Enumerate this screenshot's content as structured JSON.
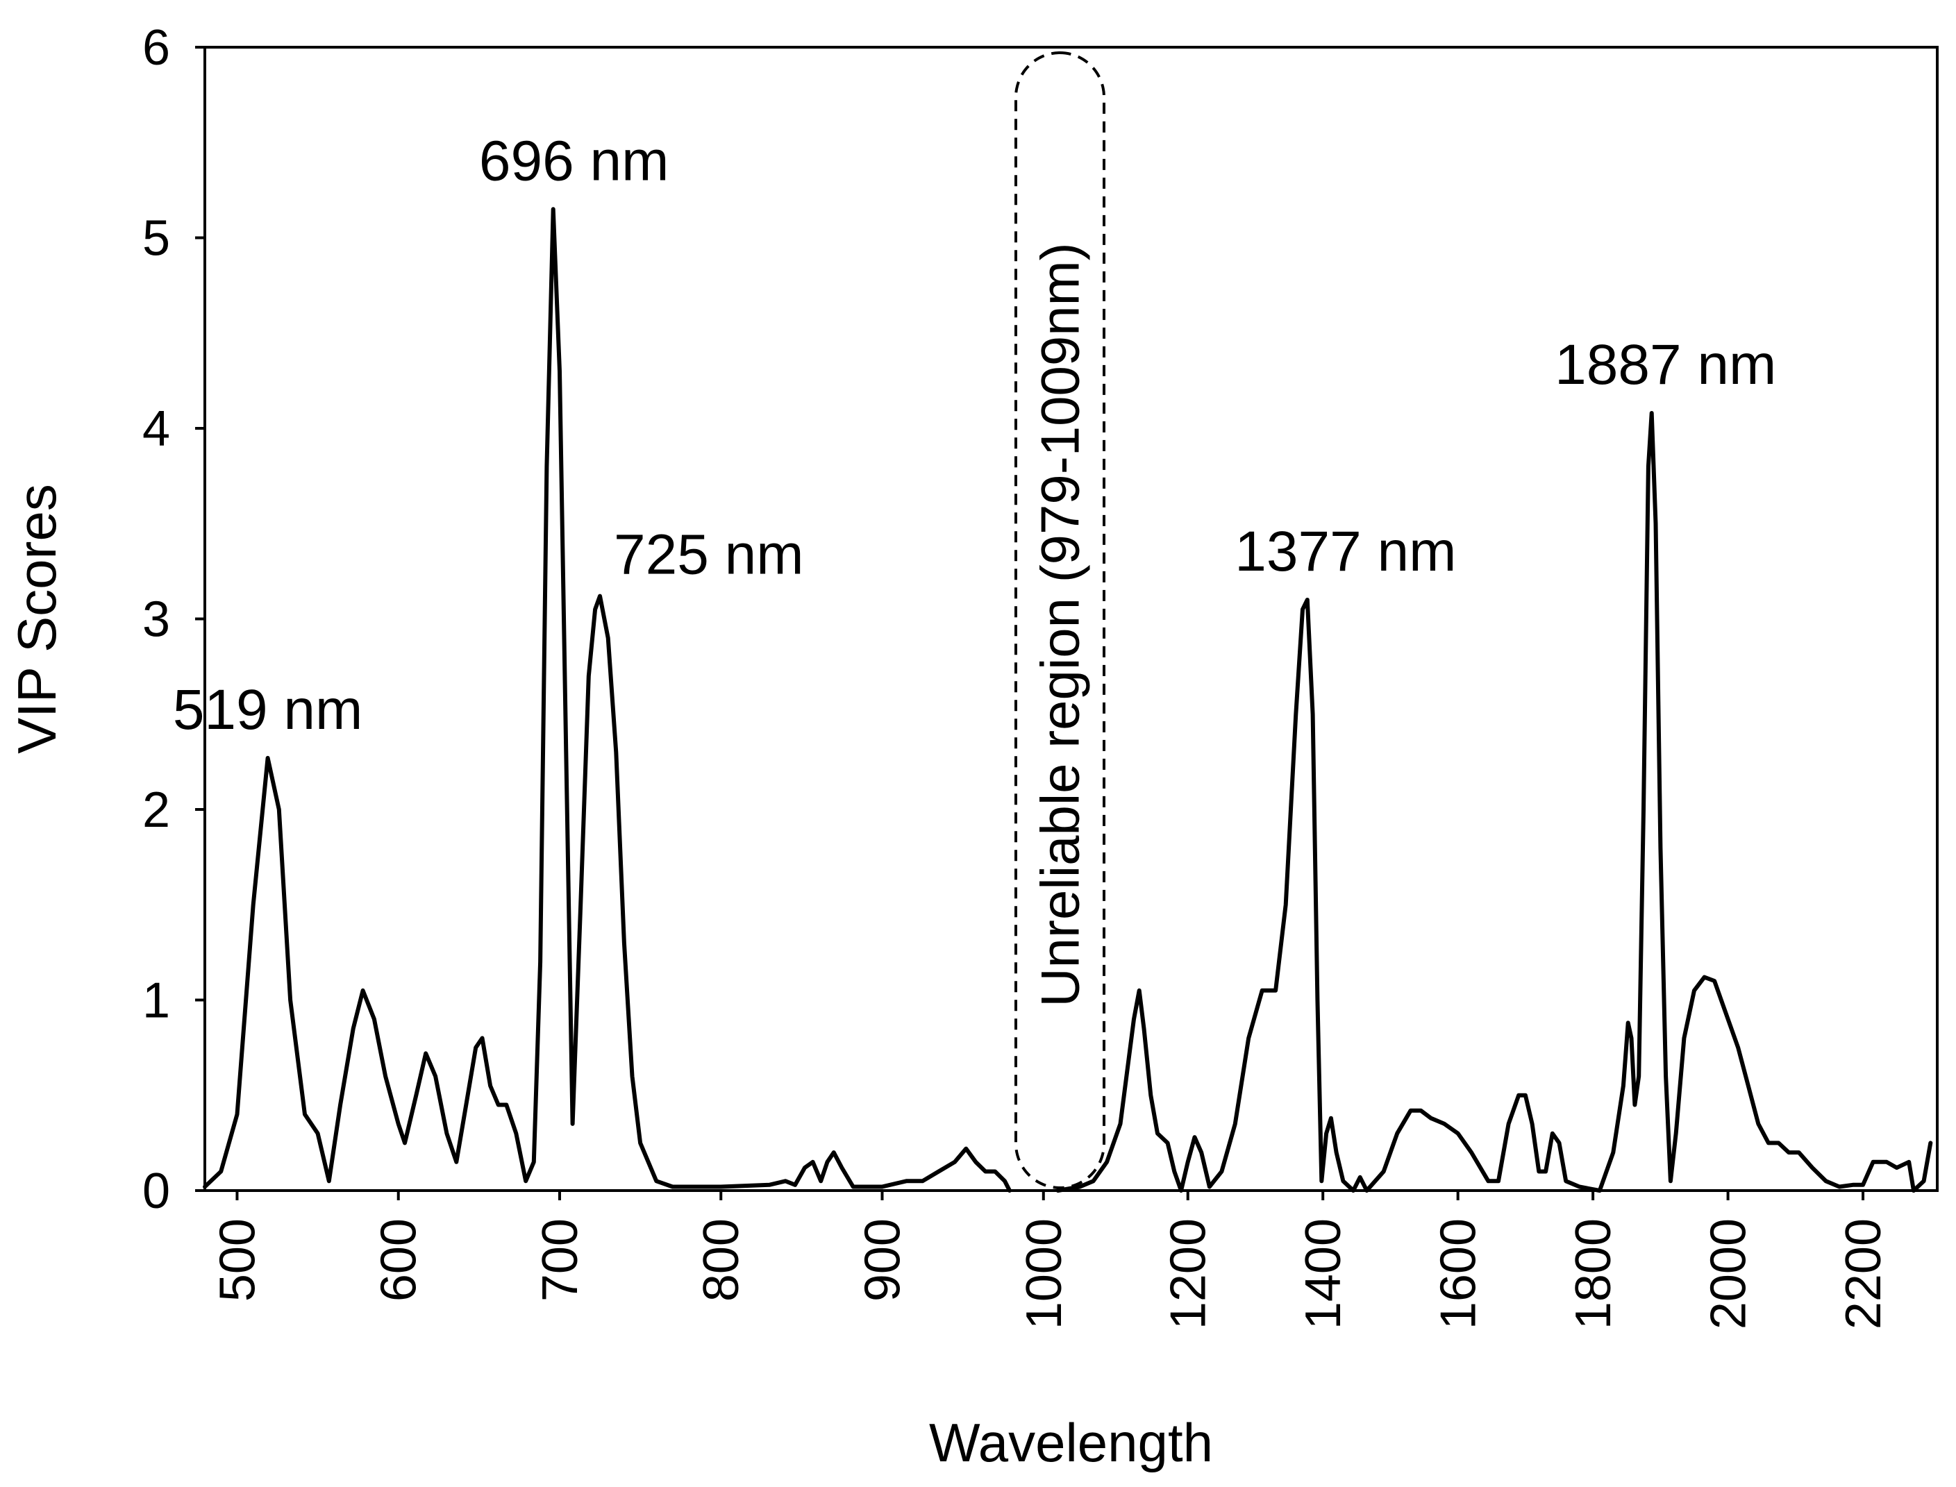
{
  "chart_data": {
    "type": "line",
    "title": "",
    "xlabel": "Wavelength",
    "ylabel": "VIP Scores",
    "ylim": [
      0,
      6
    ],
    "y_ticks": [
      0,
      1,
      2,
      3,
      4,
      5,
      6
    ],
    "grid": false,
    "x_segments": [
      {
        "from": 480,
        "to": 1010,
        "ticks": [
          500,
          600,
          700,
          800,
          900,
          1000
        ]
      },
      {
        "from": 1010,
        "to": 2310,
        "ticks": [
          1200,
          1400,
          1600,
          1800,
          2000,
          2200
        ]
      }
    ],
    "unreliable_region": {
      "label": "Unreliable region  (979-1009nm)",
      "from": 979,
      "to": 1009
    },
    "annotations": [
      {
        "text": "519 nm",
        "x": 519,
        "y": 2.27
      },
      {
        "text": "696 nm",
        "x": 696,
        "y": 5.15
      },
      {
        "text": "725 nm",
        "x": 725,
        "y": 3.12
      },
      {
        "text": "1377 nm",
        "x": 1377,
        "y": 3.1
      },
      {
        "text": "1887 nm",
        "x": 1887,
        "y": 4.08
      }
    ],
    "series": [
      {
        "name": "VIP Scores",
        "points": [
          [
            480,
            0.02
          ],
          [
            490,
            0.1
          ],
          [
            500,
            0.4
          ],
          [
            510,
            1.5
          ],
          [
            519,
            2.27
          ],
          [
            526,
            2.0
          ],
          [
            533,
            1.0
          ],
          [
            542,
            0.4
          ],
          [
            550,
            0.3
          ],
          [
            557,
            0.05
          ],
          [
            564,
            0.45
          ],
          [
            572,
            0.85
          ],
          [
            578,
            1.05
          ],
          [
            585,
            0.9
          ],
          [
            592,
            0.6
          ],
          [
            600,
            0.35
          ],
          [
            604,
            0.25
          ],
          [
            611,
            0.5
          ],
          [
            617,
            0.72
          ],
          [
            623,
            0.6
          ],
          [
            630,
            0.3
          ],
          [
            636,
            0.15
          ],
          [
            642,
            0.45
          ],
          [
            648,
            0.75
          ],
          [
            652,
            0.8
          ],
          [
            657,
            0.55
          ],
          [
            662,
            0.45
          ],
          [
            667,
            0.45
          ],
          [
            673,
            0.3
          ],
          [
            679,
            0.05
          ],
          [
            684,
            0.15
          ],
          [
            688,
            1.2
          ],
          [
            692,
            3.8
          ],
          [
            696,
            5.15
          ],
          [
            700,
            4.3
          ],
          [
            704,
            2.3
          ],
          [
            708,
            0.35
          ],
          [
            713,
            1.5
          ],
          [
            718,
            2.7
          ],
          [
            722,
            3.05
          ],
          [
            725,
            3.12
          ],
          [
            730,
            2.9
          ],
          [
            735,
            2.3
          ],
          [
            740,
            1.3
          ],
          [
            745,
            0.6
          ],
          [
            750,
            0.25
          ],
          [
            760,
            0.05
          ],
          [
            770,
            0.02
          ],
          [
            800,
            0.02
          ],
          [
            830,
            0.03
          ],
          [
            840,
            0.05
          ],
          [
            846,
            0.03
          ],
          [
            852,
            0.12
          ],
          [
            857,
            0.15
          ],
          [
            862,
            0.05
          ],
          [
            866,
            0.15
          ],
          [
            870,
            0.2
          ],
          [
            875,
            0.12
          ],
          [
            882,
            0.02
          ],
          [
            900,
            0.02
          ],
          [
            915,
            0.05
          ],
          [
            925,
            0.05
          ],
          [
            935,
            0.1
          ],
          [
            945,
            0.15
          ],
          [
            952,
            0.22
          ],
          [
            958,
            0.15
          ],
          [
            964,
            0.1
          ],
          [
            970,
            0.1
          ],
          [
            976,
            0.05
          ],
          [
            979,
            0.0
          ],
          null,
          [
            1009,
            0.0
          ],
          [
            1040,
            0.02
          ],
          [
            1060,
            0.05
          ],
          [
            1080,
            0.15
          ],
          [
            1100,
            0.35
          ],
          [
            1120,
            0.9
          ],
          [
            1128,
            1.05
          ],
          [
            1135,
            0.85
          ],
          [
            1145,
            0.5
          ],
          [
            1155,
            0.3
          ],
          [
            1170,
            0.25
          ],
          [
            1180,
            0.1
          ],
          [
            1190,
            0.0
          ],
          [
            1200,
            0.15
          ],
          [
            1210,
            0.28
          ],
          [
            1220,
            0.2
          ],
          [
            1232,
            0.02
          ],
          [
            1250,
            0.1
          ],
          [
            1270,
            0.35
          ],
          [
            1290,
            0.8
          ],
          [
            1310,
            1.05
          ],
          [
            1330,
            1.05
          ],
          [
            1345,
            1.5
          ],
          [
            1360,
            2.5
          ],
          [
            1370,
            3.05
          ],
          [
            1377,
            3.1
          ],
          [
            1385,
            2.5
          ],
          [
            1392,
            1.0
          ],
          [
            1398,
            0.05
          ],
          [
            1405,
            0.3
          ],
          [
            1412,
            0.38
          ],
          [
            1420,
            0.2
          ],
          [
            1430,
            0.05
          ],
          [
            1445,
            0.0
          ],
          [
            1455,
            0.07
          ],
          [
            1465,
            0.0
          ],
          [
            1490,
            0.1
          ],
          [
            1510,
            0.3
          ],
          [
            1530,
            0.42
          ],
          [
            1545,
            0.42
          ],
          [
            1560,
            0.38
          ],
          [
            1580,
            0.35
          ],
          [
            1600,
            0.3
          ],
          [
            1620,
            0.2
          ],
          [
            1645,
            0.05
          ],
          [
            1660,
            0.05
          ],
          [
            1675,
            0.35
          ],
          [
            1690,
            0.5
          ],
          [
            1700,
            0.5
          ],
          [
            1710,
            0.35
          ],
          [
            1720,
            0.1
          ],
          [
            1730,
            0.1
          ],
          [
            1740,
            0.3
          ],
          [
            1750,
            0.25
          ],
          [
            1760,
            0.05
          ],
          [
            1780,
            0.02
          ],
          [
            1810,
            0.0
          ],
          [
            1830,
            0.2
          ],
          [
            1845,
            0.55
          ],
          [
            1852,
            0.88
          ],
          [
            1857,
            0.8
          ],
          [
            1862,
            0.45
          ],
          [
            1868,
            0.6
          ],
          [
            1875,
            2.0
          ],
          [
            1882,
            3.8
          ],
          [
            1887,
            4.08
          ],
          [
            1893,
            3.5
          ],
          [
            1900,
            1.8
          ],
          [
            1908,
            0.6
          ],
          [
            1915,
            0.05
          ],
          [
            1923,
            0.3
          ],
          [
            1935,
            0.8
          ],
          [
            1950,
            1.05
          ],
          [
            1965,
            1.12
          ],
          [
            1980,
            1.1
          ],
          [
            1995,
            0.95
          ],
          [
            2015,
            0.75
          ],
          [
            2030,
            0.55
          ],
          [
            2045,
            0.35
          ],
          [
            2060,
            0.25
          ],
          [
            2075,
            0.25
          ],
          [
            2090,
            0.2
          ],
          [
            2105,
            0.2
          ],
          [
            2125,
            0.12
          ],
          [
            2145,
            0.05
          ],
          [
            2165,
            0.02
          ],
          [
            2185,
            0.03
          ],
          [
            2200,
            0.03
          ],
          [
            2215,
            0.15
          ],
          [
            2235,
            0.15
          ],
          [
            2250,
            0.12
          ],
          [
            2268,
            0.15
          ],
          [
            2275,
            0.0
          ],
          [
            2290,
            0.05
          ],
          [
            2300,
            0.25
          ]
        ]
      }
    ]
  }
}
